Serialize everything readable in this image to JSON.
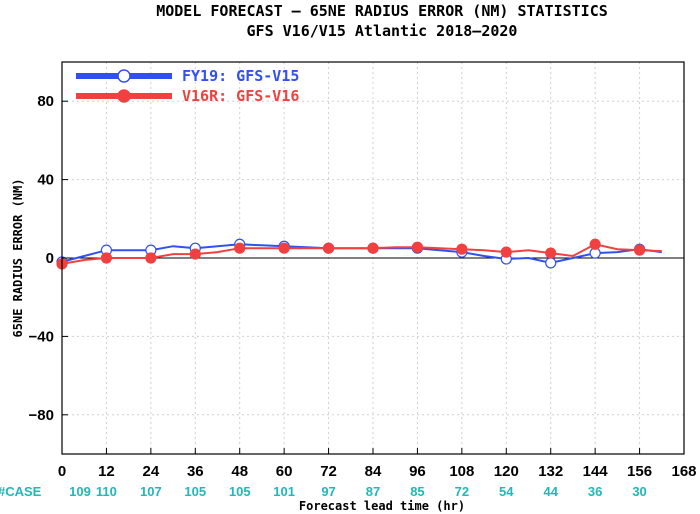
{
  "colors": {
    "series1": "#3050f0",
    "series2": "#f04040",
    "case": "#20b8b8"
  },
  "chart_data": {
    "type": "line",
    "title": "MODEL FORECAST – 65NE RADIUS ERROR (NM) STATISTICS",
    "subtitle": "GFS V16/V15 Atlantic 2018–2020",
    "xlabel": "Forecast lead time (hr)",
    "ylabel": "65NE RADIUS ERROR (NM)",
    "xlim": [
      0,
      168
    ],
    "ylim": [
      -100,
      100
    ],
    "xticks": [
      0,
      12,
      24,
      36,
      48,
      60,
      72,
      84,
      96,
      108,
      120,
      132,
      144,
      156,
      168
    ],
    "yticks": [
      -80,
      -40,
      0,
      40,
      80
    ],
    "ytick_labels": [
      "−80",
      "−40",
      "0",
      "40",
      "80"
    ],
    "grid": true,
    "legend_position": "top-left",
    "case_label": "#CASE",
    "case_x": [
      0,
      12,
      24,
      36,
      48,
      60,
      72,
      84,
      96,
      108,
      120,
      132,
      144,
      156
    ],
    "case_counts": [
      "109",
      "110",
      "107",
      "105",
      "105",
      "101",
      "97",
      "87",
      "85",
      "72",
      "54",
      "44",
      "36",
      "30"
    ],
    "series": [
      {
        "name": "FY19: GFS-V15",
        "x": [
          0,
          6,
          12,
          18,
          24,
          30,
          36,
          42,
          48,
          54,
          60,
          66,
          72,
          78,
          84,
          90,
          96,
          102,
          108,
          114,
          120,
          126,
          132,
          138,
          144,
          150,
          156,
          162
        ],
        "y": [
          -2,
          1,
          4,
          4,
          4,
          6,
          5,
          6,
          7,
          6.5,
          6,
          5.5,
          5,
          5,
          5,
          5,
          5,
          4,
          3,
          1,
          -0.5,
          0,
          -2.5,
          0,
          2.5,
          3,
          4.5,
          3
        ],
        "markers": [
          0,
          12,
          24,
          36,
          48,
          60,
          72,
          84,
          96,
          108,
          120,
          132,
          144,
          156
        ]
      },
      {
        "name": "V16R: GFS-V16",
        "x": [
          0,
          6,
          12,
          18,
          24,
          30,
          36,
          42,
          48,
          54,
          60,
          66,
          72,
          78,
          84,
          90,
          96,
          102,
          108,
          114,
          120,
          126,
          132,
          138,
          144,
          150,
          156,
          162
        ],
        "y": [
          -3,
          -1,
          0,
          0,
          0,
          2,
          2,
          3,
          5,
          5,
          5,
          5,
          5,
          5,
          5,
          5.5,
          5.5,
          5,
          4.5,
          4,
          3,
          4,
          2.5,
          1,
          7,
          4.5,
          4,
          3.5
        ],
        "markers": [
          0,
          12,
          24,
          36,
          48,
          60,
          72,
          84,
          96,
          108,
          120,
          132,
          144,
          156
        ]
      }
    ]
  }
}
